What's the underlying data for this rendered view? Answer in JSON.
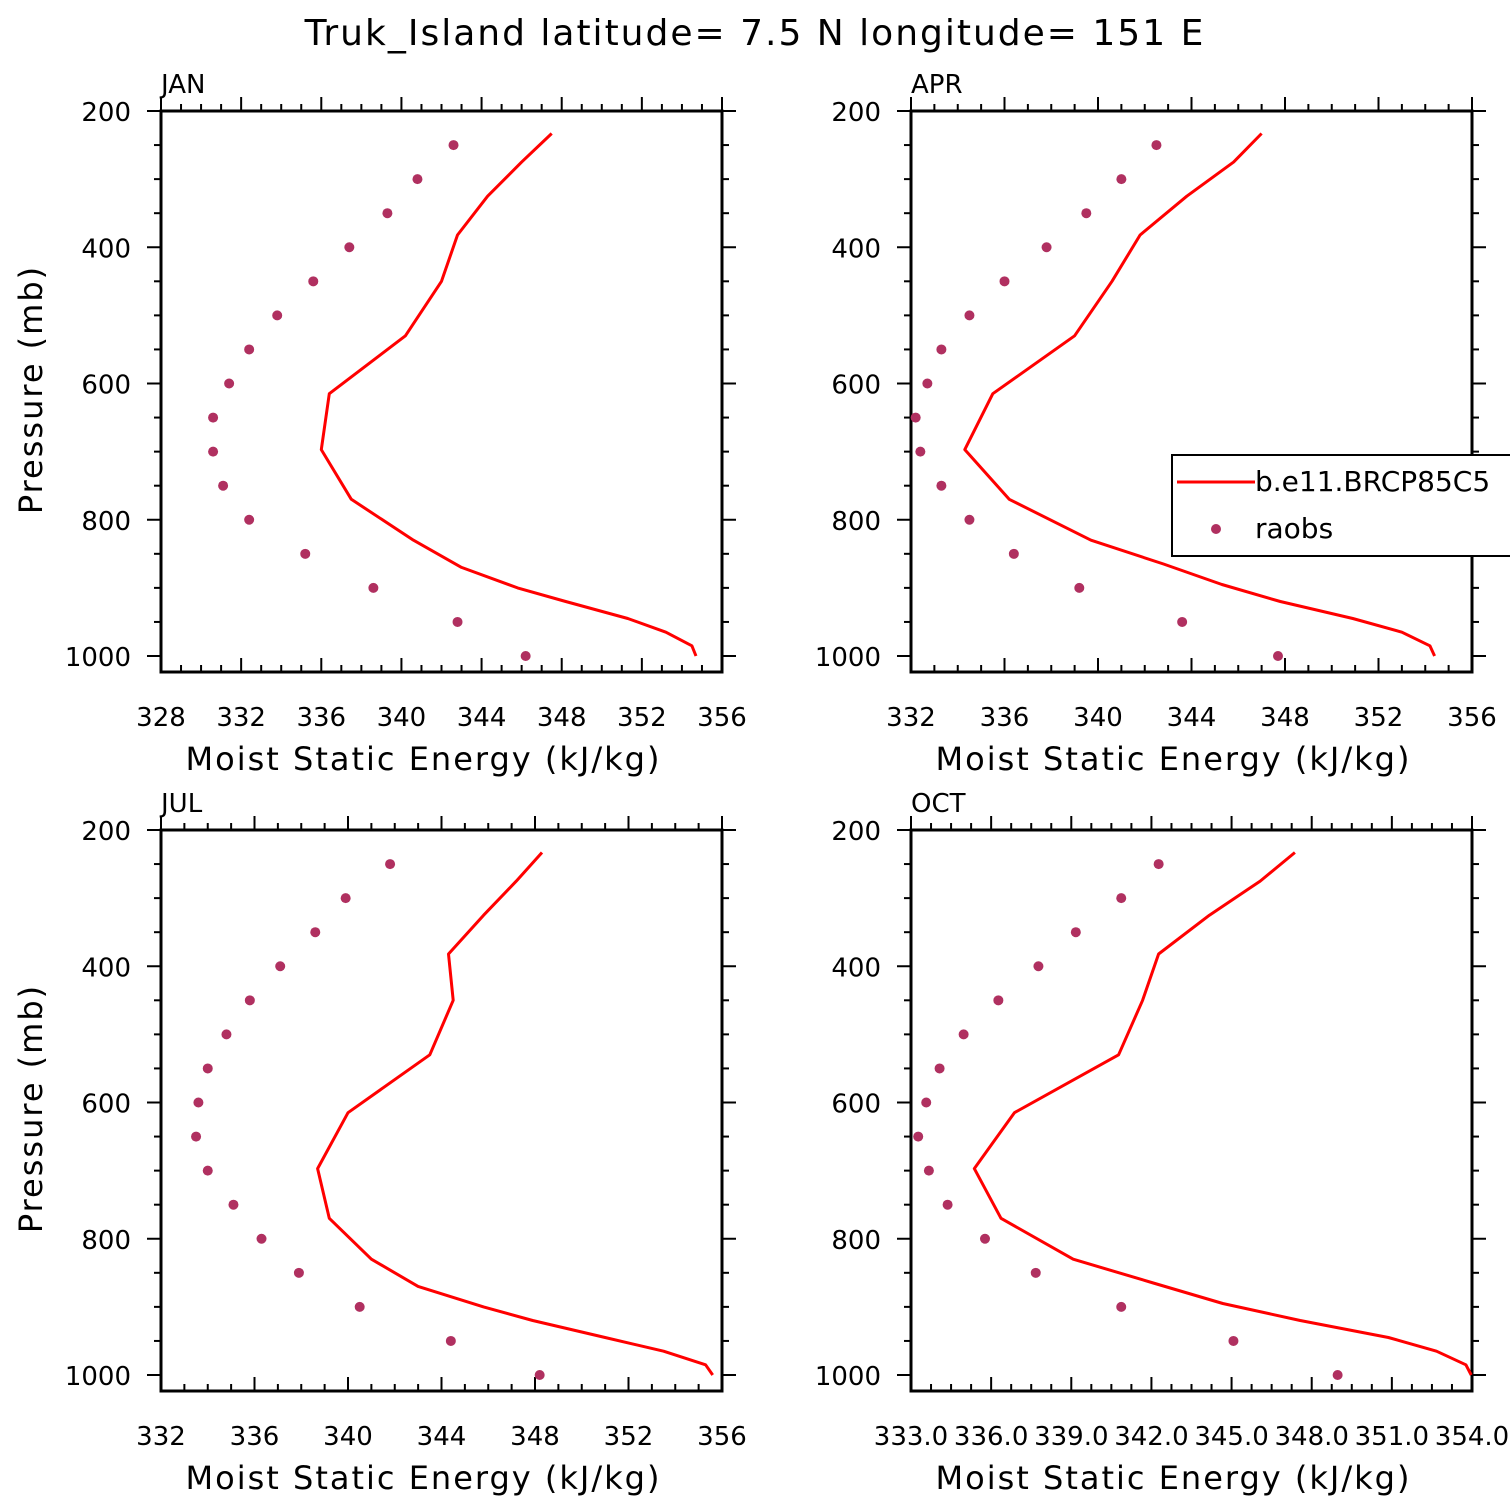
{
  "title": "Truk_Island   latitude= 7.5 N longitude= 151 E",
  "colors": {
    "model": "#ff0000",
    "obs": "#b03060",
    "frame": "#000000"
  },
  "legend": {
    "position": "right of APR panel",
    "entries": [
      "b.e11.BRCP85C5",
      "raobs"
    ]
  },
  "chart_data": [
    {
      "type": "line",
      "panel": "JAN",
      "xlabel": "Moist Static Energy (kJ/kg)",
      "ylabel": "Pressure (mb)",
      "xlim": [
        328,
        356
      ],
      "ylim": [
        200,
        1000
      ],
      "x_ticks": [
        328,
        332,
        336,
        340,
        344,
        348,
        352,
        356
      ],
      "x_tick_labels": [
        "328",
        "332",
        "336",
        "340",
        "344",
        "348",
        "352",
        "356"
      ],
      "y_ticks": [
        200,
        400,
        600,
        800,
        1000
      ],
      "y_tick_labels": [
        "200",
        "400",
        "600",
        "800",
        "1000"
      ],
      "series": [
        {
          "name": "b.e11.BRCP85C5",
          "style": "line",
          "pressure": [
            233,
            275,
            325,
            382,
            450,
            530,
            615,
            697,
            770,
            830,
            870,
            900,
            920,
            945,
            965,
            985,
            1000
          ],
          "mse": [
            347.5,
            346.0,
            344.3,
            342.8,
            342.0,
            340.2,
            336.4,
            336.0,
            337.5,
            340.6,
            343.0,
            345.8,
            348.2,
            351.3,
            353.2,
            354.5,
            354.7
          ]
        },
        {
          "name": "raobs",
          "style": "markers",
          "pressure": [
            250,
            300,
            350,
            400,
            450,
            500,
            550,
            600,
            650,
            700,
            750,
            800,
            850,
            900,
            950,
            1000
          ],
          "mse": [
            342.6,
            340.8,
            339.3,
            337.4,
            335.6,
            333.8,
            332.4,
            331.4,
            330.6,
            330.6,
            331.1,
            332.4,
            335.2,
            338.6,
            342.8,
            346.2
          ]
        }
      ]
    },
    {
      "type": "line",
      "panel": "APR",
      "xlabel": "Moist Static Energy (kJ/kg)",
      "ylabel": "",
      "xlim": [
        332,
        356
      ],
      "ylim": [
        200,
        1000
      ],
      "x_ticks": [
        332,
        336,
        340,
        344,
        348,
        352,
        356
      ],
      "x_tick_labels": [
        "332",
        "336",
        "340",
        "344",
        "348",
        "352",
        "356"
      ],
      "y_ticks": [
        200,
        400,
        600,
        800,
        1000
      ],
      "y_tick_labels": [
        "200",
        "400",
        "600",
        "800",
        "1000"
      ],
      "series": [
        {
          "name": "b.e11.BRCP85C5",
          "style": "line",
          "pressure": [
            233,
            275,
            325,
            382,
            450,
            530,
            615,
            697,
            770,
            830,
            865,
            895,
            920,
            945,
            965,
            985,
            1000
          ],
          "mse": [
            347.0,
            345.8,
            343.8,
            341.8,
            340.6,
            339.0,
            335.5,
            334.3,
            336.2,
            339.7,
            342.8,
            345.3,
            347.8,
            350.9,
            353.0,
            354.2,
            354.4
          ]
        },
        {
          "name": "raobs",
          "style": "markers",
          "pressure": [
            250,
            300,
            350,
            400,
            450,
            500,
            550,
            600,
            650,
            700,
            750,
            800,
            850,
            900,
            950,
            1000
          ],
          "mse": [
            342.5,
            341.0,
            339.5,
            337.8,
            336.0,
            334.5,
            333.3,
            332.7,
            332.2,
            332.4,
            333.3,
            334.5,
            336.4,
            339.2,
            343.6,
            347.7
          ]
        }
      ]
    },
    {
      "type": "line",
      "panel": "JUL",
      "xlabel": "Moist Static Energy (kJ/kg)",
      "ylabel": "Pressure (mb)",
      "xlim": [
        332,
        356
      ],
      "ylim": [
        200,
        1000
      ],
      "x_ticks": [
        332,
        336,
        340,
        344,
        348,
        352,
        356
      ],
      "x_tick_labels": [
        "332",
        "336",
        "340",
        "344",
        "348",
        "352",
        "356"
      ],
      "y_ticks": [
        200,
        400,
        600,
        800,
        1000
      ],
      "y_tick_labels": [
        "200",
        "400",
        "600",
        "800",
        "1000"
      ],
      "series": [
        {
          "name": "b.e11.BRCP85C5",
          "style": "line",
          "pressure": [
            233,
            275,
            325,
            382,
            450,
            530,
            615,
            697,
            770,
            830,
            870,
            900,
            920,
            945,
            965,
            985,
            1000
          ],
          "mse": [
            348.3,
            347.2,
            345.8,
            344.3,
            344.5,
            343.5,
            340.0,
            338.7,
            339.2,
            341.0,
            343.0,
            345.8,
            347.9,
            351.0,
            353.5,
            355.3,
            355.6
          ]
        },
        {
          "name": "raobs",
          "style": "markers",
          "pressure": [
            250,
            300,
            350,
            400,
            450,
            500,
            550,
            600,
            650,
            700,
            750,
            800,
            850,
            900,
            950,
            1000
          ],
          "mse": [
            341.8,
            339.9,
            338.6,
            337.1,
            335.8,
            334.8,
            334.0,
            333.6,
            333.5,
            334.0,
            335.1,
            336.3,
            337.9,
            340.5,
            344.4,
            348.2
          ]
        }
      ]
    },
    {
      "type": "line",
      "panel": "OCT",
      "xlabel": "Moist Static Energy (kJ/kg)",
      "ylabel": "",
      "xlim": [
        333.03,
        354.03
      ],
      "ylim": [
        200,
        1000
      ],
      "x_ticks": [
        333.03,
        336.03,
        339.03,
        342.03,
        345.03,
        348.03,
        351.03,
        354.03
      ],
      "x_tick_labels": [
        "333.0",
        "336.0",
        "339.0",
        "342.0",
        "345.0",
        "348.0",
        "351.0",
        "354.0"
      ],
      "y_ticks": [
        200,
        400,
        600,
        800,
        1000
      ],
      "y_tick_labels": [
        "200",
        "400",
        "600",
        "800",
        "1000"
      ],
      "series": [
        {
          "name": "b.e11.BRCP85C5",
          "style": "line",
          "pressure": [
            233,
            275,
            325,
            382,
            450,
            530,
            615,
            697,
            770,
            830,
            865,
            895,
            920,
            945,
            965,
            985,
            1000
          ],
          "mse": [
            347.4,
            346.1,
            344.2,
            342.3,
            341.7,
            340.8,
            336.9,
            335.4,
            336.4,
            339.1,
            342.1,
            344.7,
            347.6,
            350.9,
            352.7,
            353.8,
            354.0
          ]
        },
        {
          "name": "raobs",
          "style": "markers",
          "pressure": [
            250,
            300,
            350,
            400,
            450,
            500,
            550,
            600,
            650,
            700,
            750,
            800,
            850,
            900,
            950,
            1000
          ],
          "mse": [
            342.3,
            340.9,
            339.2,
            337.8,
            336.3,
            335.0,
            334.1,
            333.6,
            333.3,
            333.7,
            334.4,
            335.8,
            337.7,
            340.9,
            345.1,
            349.0
          ]
        }
      ]
    }
  ]
}
